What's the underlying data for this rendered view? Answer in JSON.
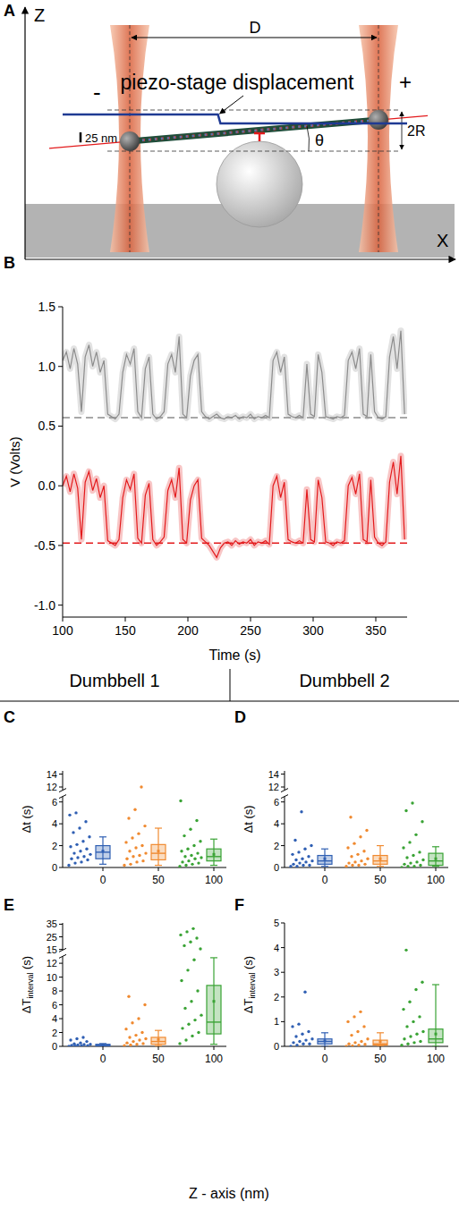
{
  "diagram": {
    "letter": "A",
    "labels": {
      "z_axis": "Z",
      "x_axis": "X",
      "distance": "D",
      "minus": "-",
      "plus": "+",
      "angle": "θ",
      "diameter": "2R"
    }
  },
  "headers": [
    "Dumbbell 1",
    "Dumbbell 2"
  ],
  "shared_xlabel": "Z - axis (nm)",
  "chart_data": [
    {
      "type": "line",
      "letter": "B",
      "annotation": "piezo-stage displacement",
      "stage": {
        "x": [
          100,
          224,
          226,
          375
        ],
        "values": [
          22,
          22,
          0,
          0
        ],
        "scale_bar": {
          "value": 25,
          "label": "25 nm"
        }
      },
      "x": [
        100,
        103,
        106,
        109,
        112,
        115,
        118,
        121,
        124,
        127,
        130,
        133,
        136,
        139,
        142,
        145,
        148,
        151,
        154,
        157,
        160,
        163,
        166,
        169,
        172,
        175,
        178,
        181,
        184,
        187,
        190,
        193,
        196,
        199,
        202,
        205,
        208,
        211,
        214,
        217,
        220,
        223,
        226,
        229,
        232,
        235,
        238,
        241,
        244,
        247,
        250,
        253,
        256,
        259,
        262,
        265,
        268,
        271,
        274,
        277,
        280,
        283,
        286,
        289,
        292,
        295,
        298,
        301,
        304,
        307,
        310,
        313,
        316,
        319,
        322,
        325,
        328,
        331,
        334,
        337,
        340,
        343,
        346,
        349,
        352,
        355,
        358,
        361,
        364,
        367,
        370,
        373
      ],
      "series": [
        {
          "color": "#8c8c8c",
          "baseline": 0.57,
          "values": [
            1.05,
            1.12,
            0.98,
            1.15,
            1.02,
            0.62,
            1.08,
            1.18,
            1.0,
            1.12,
            0.95,
            1.05,
            0.6,
            0.58,
            0.56,
            0.6,
            0.95,
            1.1,
            1.02,
            1.15,
            0.62,
            0.57,
            0.98,
            1.08,
            0.6,
            0.56,
            0.58,
            0.62,
            1.02,
            1.1,
            0.95,
            1.25,
            0.6,
            0.57,
            0.92,
            1.05,
            1.1,
            0.62,
            0.58,
            0.56,
            0.58,
            0.6,
            0.57,
            0.56,
            0.58,
            0.57,
            0.59,
            0.56,
            0.58,
            0.57,
            0.6,
            0.56,
            0.58,
            0.57,
            0.59,
            0.57,
            1.05,
            1.12,
            0.95,
            1.08,
            0.6,
            0.58,
            0.57,
            0.59,
            0.57,
            1.02,
            0.6,
            0.58,
            1.1,
            0.95,
            0.58,
            0.57,
            0.56,
            0.58,
            0.57,
            0.59,
            1.05,
            1.12,
            0.98,
            1.15,
            0.6,
            0.58,
            1.1,
            0.62,
            0.57,
            0.56,
            0.58,
            1.08,
            1.25,
            0.98,
            1.3,
            0.6
          ]
        },
        {
          "color": "#e31a1c",
          "baseline": -0.48,
          "values": [
            0.0,
            0.08,
            -0.05,
            0.1,
            -0.02,
            -0.45,
            0.03,
            0.12,
            -0.04,
            0.06,
            -0.1,
            0.0,
            -0.46,
            -0.48,
            -0.5,
            -0.45,
            -0.1,
            0.05,
            -0.03,
            0.1,
            -0.44,
            -0.48,
            -0.08,
            0.02,
            -0.45,
            -0.5,
            -0.47,
            -0.43,
            -0.04,
            0.05,
            -0.1,
            0.15,
            -0.45,
            -0.48,
            -0.12,
            0.0,
            0.05,
            -0.44,
            -0.47,
            -0.5,
            -0.55,
            -0.6,
            -0.52,
            -0.48,
            -0.47,
            -0.5,
            -0.46,
            -0.49,
            -0.47,
            -0.48,
            -0.45,
            -0.5,
            -0.47,
            -0.48,
            -0.46,
            -0.49,
            0.0,
            0.08,
            -0.1,
            0.03,
            -0.45,
            -0.47,
            -0.48,
            -0.46,
            -0.48,
            -0.03,
            -0.45,
            -0.47,
            0.05,
            -0.1,
            -0.47,
            -0.48,
            -0.5,
            -0.47,
            -0.48,
            -0.46,
            0.0,
            0.07,
            -0.07,
            0.1,
            -0.45,
            -0.47,
            0.05,
            -0.43,
            -0.48,
            -0.5,
            -0.47,
            0.03,
            0.2,
            -0.07,
            0.25,
            -0.45
          ]
        }
      ],
      "xlabel": "Time (s)",
      "ylabel": "V (Volts)",
      "xlim": [
        100,
        375
      ],
      "ylim": [
        -1.1,
        1.5
      ],
      "xticks": [
        100,
        150,
        200,
        250,
        300,
        350
      ],
      "yticks": [
        {
          "value": -1,
          "label": "-1.0"
        },
        -0.5,
        {
          "value": 0,
          "label": "0.0"
        },
        0.5,
        {
          "value": 1,
          "label": "1.0"
        },
        1.5
      ]
    },
    {
      "type": "box",
      "letter": "C",
      "ylabel": {
        "text": "Δt (s)"
      },
      "categories": [
        0,
        50,
        100
      ],
      "colors": [
        "#2f5fb3",
        "#f08a30",
        "#3aa335"
      ],
      "ylim": [
        0,
        14.5
      ],
      "y_break": [
        6.5,
        11.5
      ],
      "yticks": [
        0,
        2,
        4,
        6,
        12,
        14
      ],
      "points": [
        [
          0.2,
          0.4,
          0.5,
          0.7,
          0.8,
          0.9,
          1.0,
          1.2,
          1.3,
          1.5,
          1.7,
          1.9,
          2.1,
          2.4,
          2.8,
          3.2,
          3.6,
          4.2,
          4.8,
          5.0
        ],
        [
          0.2,
          0.3,
          0.5,
          0.6,
          0.8,
          1.0,
          1.1,
          1.3,
          1.5,
          1.8,
          2.0,
          2.3,
          2.7,
          3.1,
          3.8,
          4.5,
          5.3,
          12.0
        ],
        [
          0.1,
          0.2,
          0.3,
          0.4,
          0.5,
          0.6,
          0.8,
          0.9,
          1.0,
          1.1,
          1.3,
          1.5,
          1.7,
          2.0,
          2.4,
          2.9,
          3.5,
          4.3,
          6.1
        ]
      ],
      "boxes": [
        {
          "whisker_low": 0.3,
          "q1": 0.8,
          "median": 1.4,
          "q3": 2.0,
          "whisker_high": 2.8,
          "mean": 1.5
        },
        {
          "whisker_low": 0.2,
          "q1": 0.7,
          "median": 1.3,
          "q3": 2.1,
          "whisker_high": 3.6,
          "mean": 1.5
        },
        {
          "whisker_low": 0.2,
          "q1": 0.6,
          "median": 1.0,
          "q3": 1.7,
          "whisker_high": 2.6,
          "mean": 1.2
        }
      ]
    },
    {
      "type": "box",
      "letter": "D",
      "ylabel": {
        "text": "Δt (s)"
      },
      "categories": [
        0,
        50,
        100
      ],
      "colors": [
        "#2f5fb3",
        "#f08a30",
        "#3aa335"
      ],
      "ylim": [
        0,
        14.5
      ],
      "y_break": [
        6.5,
        11.5
      ],
      "yticks": [
        0,
        2,
        4,
        6,
        12,
        14
      ],
      "points": [
        [
          0.1,
          0.1,
          0.2,
          0.2,
          0.3,
          0.4,
          0.5,
          0.6,
          0.7,
          0.8,
          1.0,
          1.2,
          1.4,
          1.7,
          2.0,
          2.5,
          5.1
        ],
        [
          0.1,
          0.2,
          0.2,
          0.3,
          0.4,
          0.5,
          0.6,
          0.8,
          1.0,
          1.2,
          1.5,
          1.8,
          2.2,
          2.8,
          3.4,
          4.6
        ],
        [
          0.0,
          0.1,
          0.1,
          0.2,
          0.3,
          0.4,
          0.5,
          0.7,
          0.9,
          1.1,
          1.4,
          1.8,
          2.3,
          3.0,
          4.2,
          5.2,
          5.9
        ]
      ],
      "boxes": [
        {
          "whisker_low": 0.1,
          "q1": 0.3,
          "median": 0.6,
          "q3": 1.1,
          "whisker_high": 1.7,
          "mean": 0.8
        },
        {
          "whisker_low": 0.1,
          "q1": 0.3,
          "median": 0.6,
          "q3": 1.1,
          "whisker_high": 2.0,
          "mean": 0.8
        },
        {
          "whisker_low": 0.1,
          "q1": 0.2,
          "median": 0.6,
          "q3": 1.3,
          "whisker_high": 1.9,
          "mean": 0.8
        }
      ]
    },
    {
      "type": "box",
      "letter": "E",
      "ylabel": {
        "text": "ΔT",
        "subscript": "interval",
        "suffix": " (s)"
      },
      "categories": [
        0,
        50,
        100
      ],
      "colors": [
        "#2f5fb3",
        "#f08a30",
        "#3aa335"
      ],
      "ylim": [
        0,
        36
      ],
      "y_break": [
        13,
        14.5
      ],
      "yticks": [
        0,
        2,
        4,
        6,
        8,
        10,
        12,
        15,
        25,
        35
      ],
      "points": [
        [
          0.0,
          0.05,
          0.1,
          0.1,
          0.15,
          0.2,
          0.25,
          0.3,
          0.35,
          0.5,
          0.7,
          0.9,
          1.1,
          1.3
        ],
        [
          0.1,
          0.2,
          0.3,
          0.4,
          0.5,
          0.7,
          0.9,
          1.1,
          1.3,
          1.6,
          2.0,
          2.5,
          3.4,
          4.0,
          6.0,
          7.2
        ],
        [
          0.4,
          0.9,
          1.5,
          2.0,
          2.6,
          3.2,
          3.8,
          4.5,
          5.5,
          6.5,
          8.0,
          9.5,
          11.0,
          12.5,
          15.5,
          18.0,
          21.0,
          24.0,
          26.5,
          29.0,
          31.5
        ]
      ],
      "boxes": [
        {
          "whisker_low": 0.0,
          "q1": 0.05,
          "median": 0.15,
          "q3": 0.3,
          "whisker_high": 0.4,
          "mean": 0.2
        },
        {
          "whisker_low": 0.1,
          "q1": 0.3,
          "median": 0.7,
          "q3": 1.3,
          "whisker_high": 2.3,
          "mean": 1.0
        },
        {
          "whisker_low": 0.3,
          "q1": 1.8,
          "median": 3.5,
          "q3": 8.8,
          "whisker_high": 12.8,
          "mean": 6.5
        }
      ]
    },
    {
      "type": "box",
      "letter": "F",
      "ylabel": {
        "text": "ΔT",
        "subscript": "interval",
        "suffix": " (s)"
      },
      "categories": [
        0,
        50,
        100
      ],
      "colors": [
        "#2f5fb3",
        "#f08a30",
        "#3aa335"
      ],
      "ylim": [
        0,
        5
      ],
      "yticks": [
        0,
        1,
        2,
        3,
        4,
        5
      ],
      "points": [
        [
          0.0,
          0.05,
          0.1,
          0.1,
          0.15,
          0.2,
          0.25,
          0.3,
          0.4,
          0.5,
          0.6,
          0.8,
          0.9,
          2.2
        ],
        [
          0.0,
          0.02,
          0.05,
          0.08,
          0.1,
          0.15,
          0.2,
          0.3,
          0.45,
          0.6,
          0.8,
          1.0,
          1.2,
          1.4
        ],
        [
          0.05,
          0.1,
          0.15,
          0.2,
          0.3,
          0.4,
          0.5,
          0.6,
          0.8,
          1.0,
          1.2,
          1.5,
          1.8,
          2.3,
          2.6,
          3.9
        ]
      ],
      "boxes": [
        {
          "whisker_low": 0.0,
          "q1": 0.1,
          "median": 0.2,
          "q3": 0.3,
          "whisker_high": 0.55,
          "mean": 0.22
        },
        {
          "whisker_low": 0.0,
          "q1": 0.05,
          "median": 0.1,
          "q3": 0.25,
          "whisker_high": 0.55,
          "mean": 0.2
        },
        {
          "whisker_low": 0.0,
          "q1": 0.15,
          "median": 0.3,
          "q3": 0.7,
          "whisker_high": 2.5,
          "mean": 0.5
        }
      ]
    }
  ]
}
